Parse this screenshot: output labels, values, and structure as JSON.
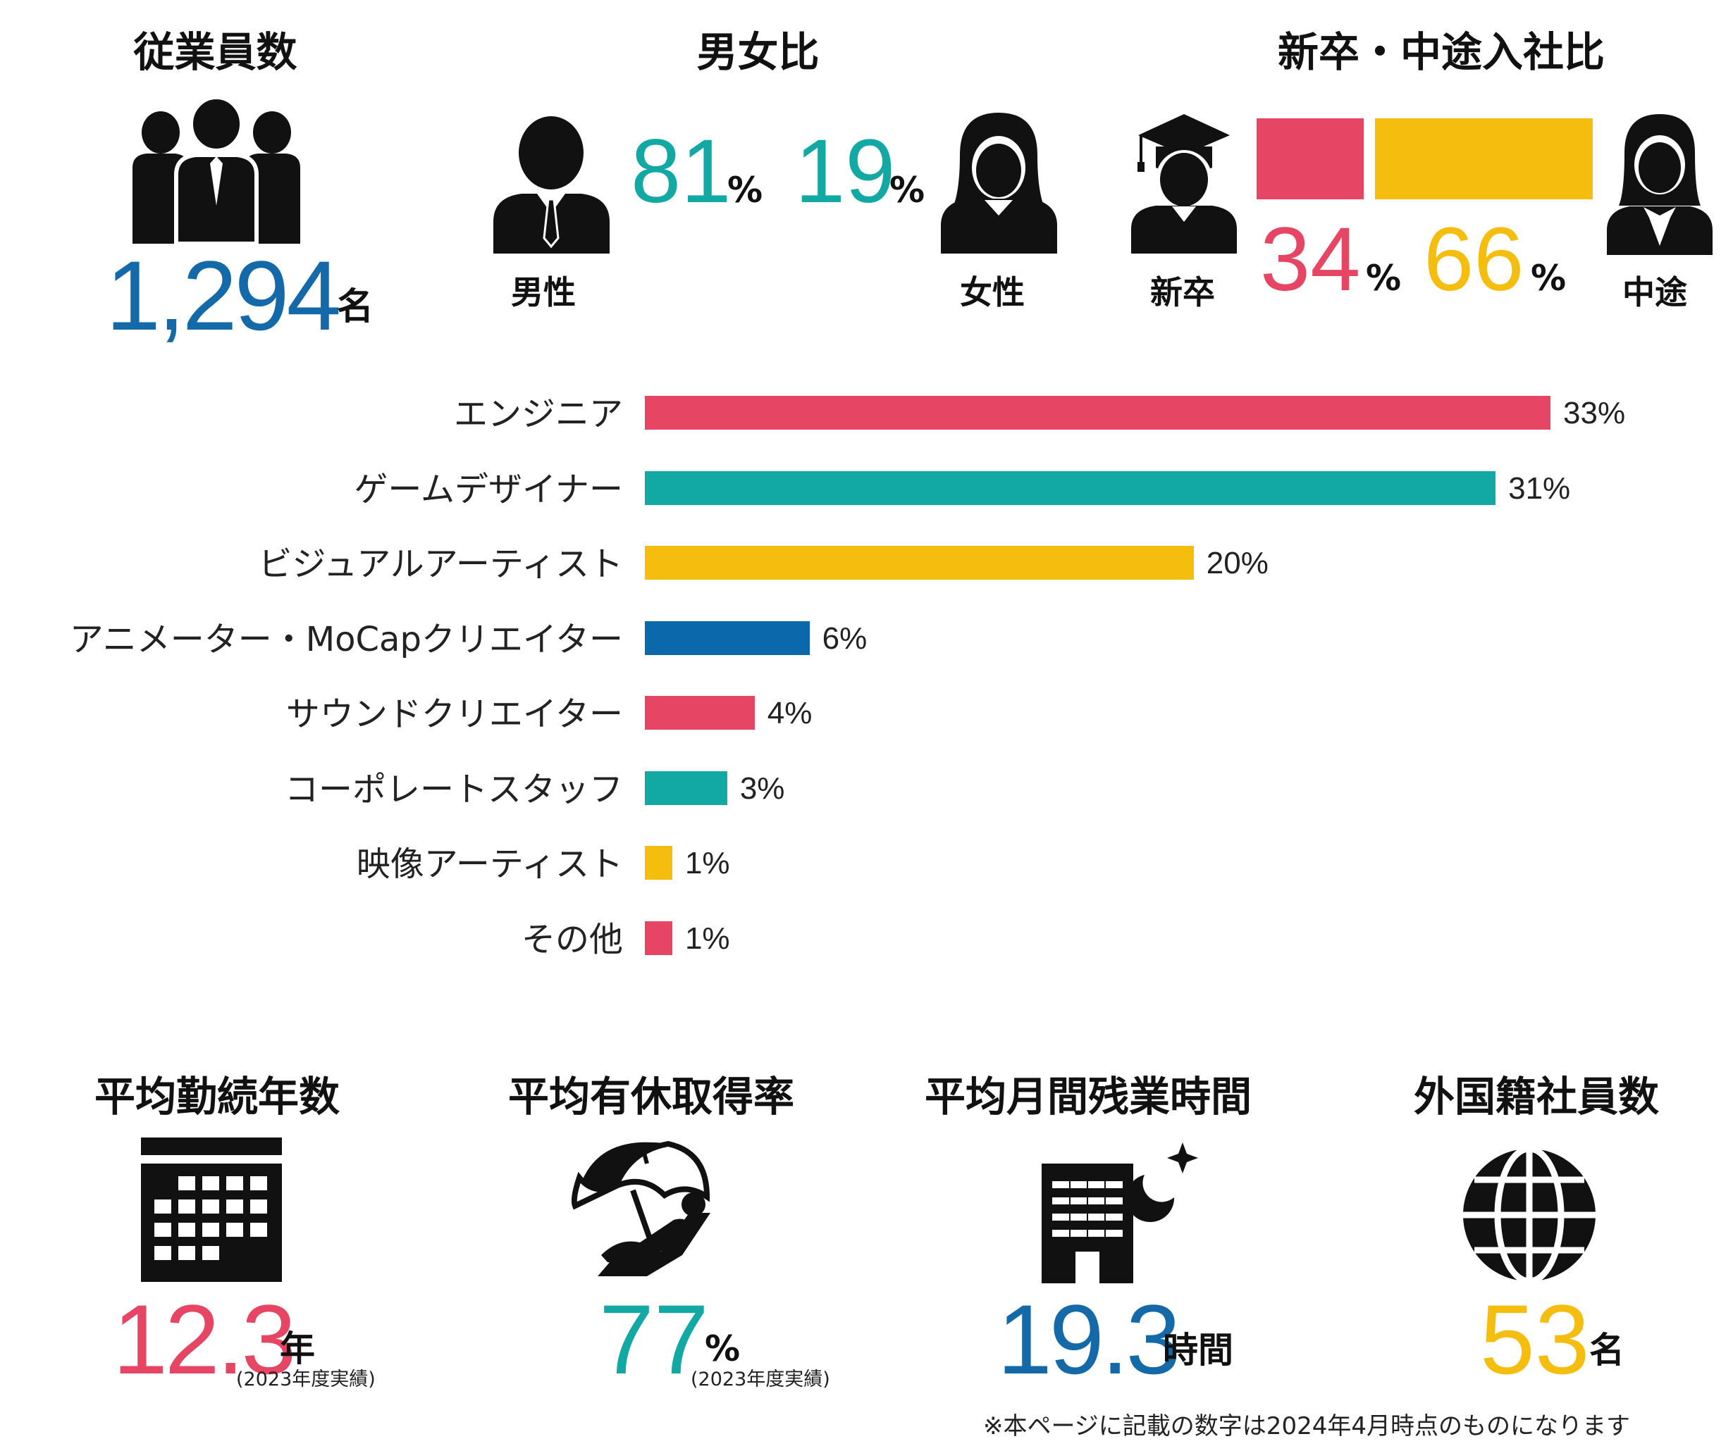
{
  "colors": {
    "blue": "#1469a8",
    "teal": "#12a8a3",
    "pink": "#e64663",
    "yellow": "#f5be0f",
    "navy": "#0b68aa"
  },
  "employees": {
    "title": "従業員数",
    "value": "1,294",
    "unit": "名",
    "icon": "people-group-icon"
  },
  "gender": {
    "title": "男女比",
    "male_pct": "81",
    "female_pct": "19",
    "pct_unit": "%",
    "male_label": "男性",
    "female_label": "女性",
    "male_icon": "male-person-icon",
    "female_icon": "female-person-icon"
  },
  "hire": {
    "title": "新卒・中途入社比",
    "new_pct": "34",
    "mid_pct": "66",
    "pct_unit": "%",
    "new_label": "新卒",
    "mid_label": "中途",
    "new_icon": "graduate-icon",
    "mid_icon": "businesswoman-icon"
  },
  "chart_data": {
    "type": "bar",
    "orientation": "horizontal",
    "categories": [
      "エンジニア",
      "ゲームデザイナー",
      "ビジュアルアーティスト",
      "アニメーター・MoCapクリエイター",
      "サウンドクリエイター",
      "コーポレートスタッフ",
      "映像アーティスト",
      "その他"
    ],
    "values": [
      33,
      31,
      20,
      6,
      4,
      3,
      1,
      1
    ],
    "value_labels": [
      "33%",
      "31%",
      "20%",
      "6%",
      "4%",
      "3%",
      "1%",
      "1%"
    ],
    "bar_colors": [
      "#e64663",
      "#12a8a3",
      "#f5be0f",
      "#0b68aa",
      "#e64663",
      "#12a8a3",
      "#f5be0f",
      "#e64663"
    ],
    "unit": "%",
    "xlim": [
      0,
      33
    ]
  },
  "tenure": {
    "title": "平均勤続年数",
    "value": "12.3",
    "unit": "年",
    "note": "(2023年度実績)",
    "icon": "calendar-icon"
  },
  "leave": {
    "title": "平均有休取得率",
    "value": "77",
    "unit": "%",
    "note": "(2023年度実績)",
    "icon": "beach-umbrella-icon"
  },
  "overtime": {
    "title": "平均月間残業時間",
    "value": "19.3",
    "unit": "時間",
    "icon": "night-office-icon"
  },
  "foreign": {
    "title": "外国籍社員数",
    "value": "53",
    "unit": "名",
    "icon": "globe-icon"
  },
  "footnote": "※本ページに記載の数字は2024年4月時点のものになります"
}
